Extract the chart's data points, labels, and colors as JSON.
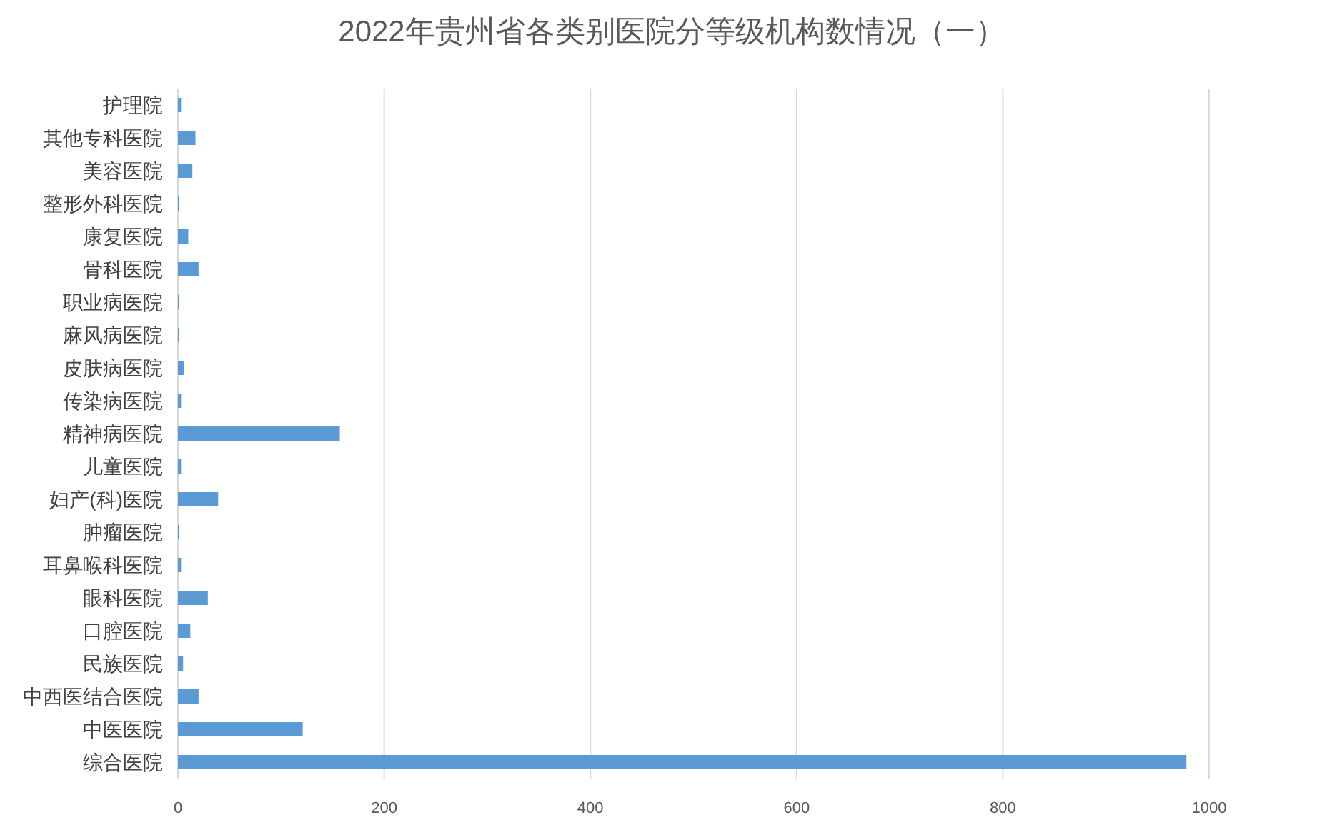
{
  "chart_data": {
    "type": "bar",
    "orientation": "horizontal",
    "title": "2022年贵州省各类别医院分等级机构数情况（一）",
    "categories": [
      "护理院",
      "其他专科医院",
      "美容医院",
      "整形外科医院",
      "康复医院",
      "骨科医院",
      "职业病医院",
      "麻风病医院",
      "皮肤病医院",
      "传染病医院",
      "精神病医院",
      "儿童医院",
      "妇产(科)医院",
      "肿瘤医院",
      "耳鼻喉科医院",
      "眼科医院",
      "口腔医院",
      "民族医院",
      "中西医结合医院",
      "中医医院",
      "综合医院"
    ],
    "values": [
      3,
      17,
      14,
      1,
      10,
      20,
      1,
      1,
      6,
      3,
      157,
      3,
      39,
      1,
      3,
      29,
      12,
      5,
      20,
      121,
      978
    ],
    "color": "#5b9bd5",
    "xlim": [
      0,
      1000
    ],
    "xticks": [
      0,
      200,
      400,
      600,
      800,
      1000
    ],
    "grid": "x"
  }
}
